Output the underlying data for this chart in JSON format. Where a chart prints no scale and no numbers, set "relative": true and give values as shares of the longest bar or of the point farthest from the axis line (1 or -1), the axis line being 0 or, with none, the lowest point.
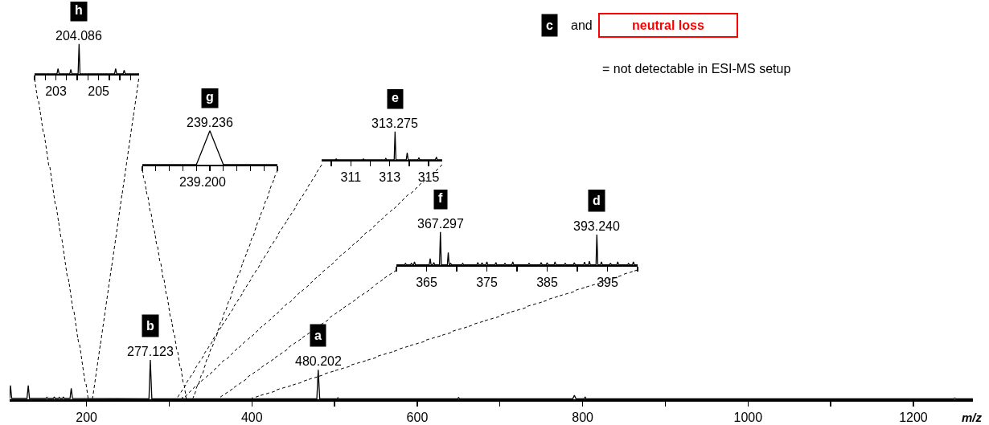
{
  "chart_data": [
    {
      "type": "line",
      "relative": true,
      "color": "#000000",
      "xlabel": "m/z",
      "xlim": [
        107,
        1272
      ],
      "xticks": [
        200,
        {
          "value": 300,
          "label": null
        },
        400,
        {
          "value": 500,
          "label": null
        },
        600,
        {
          "value": 700,
          "label": null
        },
        800,
        {
          "value": 900,
          "label": null
        },
        1000,
        {
          "value": 1100,
          "label": null
        },
        1200
      ],
      "x": [
        107,
        108,
        109.5,
        128,
        129.5,
        131,
        151,
        152,
        153,
        160,
        161,
        162,
        166,
        167,
        168,
        171,
        172,
        173,
        180,
        181.5,
        183,
        275.5,
        277.123,
        279,
        315,
        316,
        317,
        478.5,
        480.202,
        482,
        503,
        504,
        505,
        649,
        650,
        651,
        788,
        790,
        792,
        802,
        803,
        804,
        1248,
        1250,
        1252,
        1272
      ],
      "values": [
        0.01,
        0.35,
        0.02,
        0.02,
        0.35,
        0.02,
        0.02,
        0.05,
        0.02,
        0.02,
        0.06,
        0.02,
        0.02,
        0.05,
        0.02,
        0.02,
        0.06,
        0.02,
        0.02,
        0.28,
        0.02,
        0.01,
        1,
        0.01,
        0.01,
        0.04,
        0.01,
        0.01,
        0.75,
        0.01,
        0.01,
        0.04,
        0.01,
        0.01,
        0.05,
        0.01,
        0.01,
        0.1,
        0.01,
        0.01,
        0.06,
        0.01,
        0.01,
        0.03,
        0.01,
        0.01
      ],
      "annotations": [
        {
          "text": "b",
          "x": 277.123,
          "y": 1
        },
        {
          "text": "277.123",
          "x": 277.123,
          "y": 1
        },
        {
          "text": "a",
          "x": 480.202,
          "y": 0.75
        },
        {
          "text": "480.202",
          "x": 480.202,
          "y": 0.75
        },
        "c",
        "and",
        "neutral loss",
        "= not detectable in ESI-MS setup"
      ]
    },
    {
      "type": "line",
      "relative": true,
      "color": "#000000",
      "xlim": [
        202,
        206.9
      ],
      "xticks": [
        {
          "value": 202,
          "label": null
        },
        {
          "value": 202.5,
          "label": null
        },
        203,
        {
          "value": 203.5,
          "label": null
        },
        {
          "value": 204,
          "label": null
        },
        {
          "value": 204.5,
          "label": null
        },
        205,
        {
          "value": 205.5,
          "label": null
        },
        {
          "value": 206,
          "label": null
        },
        {
          "value": 206.5,
          "label": null
        }
      ],
      "x": [
        202,
        203.05,
        203.1,
        203.15,
        203.65,
        203.7,
        203.75,
        204.04,
        204.086,
        204.13,
        205.75,
        205.8,
        205.85,
        206.15,
        206.2,
        206.25,
        206.9
      ],
      "values": [
        0,
        0,
        0.18,
        0,
        0,
        0.15,
        0,
        0,
        1,
        0,
        0,
        0.18,
        0,
        0,
        0.12,
        0,
        0
      ],
      "annotations": [
        {
          "text": "h",
          "x": 204.086,
          "y": 1
        },
        {
          "text": "204.086",
          "x": 204.086,
          "y": 1
        }
      ]
    },
    {
      "type": "line",
      "relative": true,
      "color": "#000000",
      "categories": [
        null,
        null,
        null,
        null,
        null,
        null,
        null,
        null,
        null,
        null,
        null
      ],
      "values": [
        0,
        0,
        0,
        0,
        0,
        1,
        0,
        0,
        0,
        0,
        0
      ],
      "annotations": [
        {
          "text": "g",
          "y": 1
        },
        {
          "text": "239.236",
          "y": 1
        },
        "239.200"
      ]
    },
    {
      "type": "line",
      "relative": true,
      "color": "#000000",
      "xlim": [
        309.5,
        315.7
      ],
      "xticks": [
        {
          "value": 310,
          "label": null
        },
        311,
        {
          "value": 312,
          "label": null
        },
        313,
        {
          "value": 314,
          "label": null
        },
        315
      ],
      "x": [
        309.5,
        310.2,
        310.25,
        310.3,
        311.6,
        311.65,
        311.7,
        312.75,
        312.8,
        312.85,
        313.23,
        313.275,
        313.32,
        313.85,
        313.9,
        313.95,
        314.45,
        314.5,
        314.55,
        315.35,
        315.4,
        315.45,
        315.7
      ],
      "values": [
        0,
        0,
        0.03,
        0,
        0,
        0.03,
        0,
        0,
        0.05,
        0,
        0,
        1,
        0,
        0,
        0.25,
        0,
        0,
        0.08,
        0,
        0,
        0.1,
        0,
        0
      ],
      "annotations": [
        {
          "text": "e",
          "x": 313.275,
          "y": 1
        },
        {
          "text": "313.275",
          "x": 313.275,
          "y": 1
        }
      ]
    },
    {
      "type": "line",
      "relative": true,
      "color": "#000000",
      "xlim": [
        360,
        400
      ],
      "xticks": [
        {
          "value": 360,
          "label": null
        },
        365,
        {
          "value": 370,
          "label": null
        },
        375,
        {
          "value": 380,
          "label": null
        },
        385,
        {
          "value": 390,
          "label": null
        },
        395,
        {
          "value": 400,
          "label": null
        }
      ],
      "x": [
        360,
        361.35,
        361.5,
        361.65,
        362.35,
        362.5,
        362.65,
        362.85,
        363,
        363.15,
        365.45,
        365.6,
        365.75,
        366.05,
        366.2,
        366.35,
        367.15,
        367.297,
        367.45,
        368.45,
        368.6,
        368.75,
        368.85,
        369,
        369.15,
        370.85,
        371,
        371.15,
        373.35,
        373.5,
        373.65,
        374.05,
        374.2,
        374.35,
        374.85,
        375,
        375.15,
        376.35,
        376.5,
        376.65,
        377.85,
        378,
        378.15,
        379.15,
        379.3,
        379.45,
        381.85,
        382,
        382.15,
        383.85,
        384,
        384.15,
        384.85,
        385,
        385.15,
        386.15,
        386.3,
        386.45,
        387.85,
        388,
        388.15,
        389.35,
        389.5,
        389.65,
        391.05,
        391.2,
        391.35,
        391.85,
        392,
        392.15,
        393.1,
        393.24,
        393.4,
        393.85,
        394,
        394.15,
        395.35,
        395.5,
        395.65,
        396.55,
        396.7,
        396.85,
        398.35,
        398.5,
        398.65,
        399.15,
        399.3,
        399.45,
        400
      ],
      "values": [
        0.01,
        0.01,
        0.05,
        0.01,
        0.01,
        0.06,
        0.01,
        0.01,
        0.1,
        0.01,
        0.01,
        0.2,
        0.01,
        0.01,
        0.08,
        0.01,
        0.01,
        1,
        0.01,
        0.01,
        0.38,
        0.01,
        0.01,
        0.05,
        0.01,
        0.01,
        0.05,
        0.01,
        0.01,
        0.08,
        0.01,
        0.01,
        0.07,
        0.01,
        0.01,
        0.1,
        0.01,
        0.01,
        0.08,
        0.01,
        0.01,
        0.06,
        0.01,
        0.01,
        0.1,
        0.01,
        0.01,
        0.06,
        0.01,
        0.01,
        0.08,
        0.01,
        0.01,
        0.07,
        0.01,
        0.01,
        0.1,
        0.01,
        0.01,
        0.06,
        0.01,
        0.01,
        0.07,
        0.01,
        0.01,
        0.09,
        0.01,
        0.01,
        0.12,
        0.01,
        0.01,
        0.92,
        0.01,
        0.01,
        0.1,
        0.01,
        0.01,
        0.06,
        0.01,
        0.01,
        0.1,
        0.01,
        0.01,
        0.05,
        0.01,
        0.01,
        0.1,
        0.01,
        0.01
      ],
      "annotations": [
        {
          "text": "f",
          "x": 367.297,
          "y": 1
        },
        {
          "text": "367.297",
          "x": 367.297,
          "y": 1
        },
        {
          "text": "d",
          "x": 393.24,
          "y": 0.92
        },
        {
          "text": "393.240",
          "x": 393.24,
          "y": 0.92
        }
      ]
    }
  ]
}
